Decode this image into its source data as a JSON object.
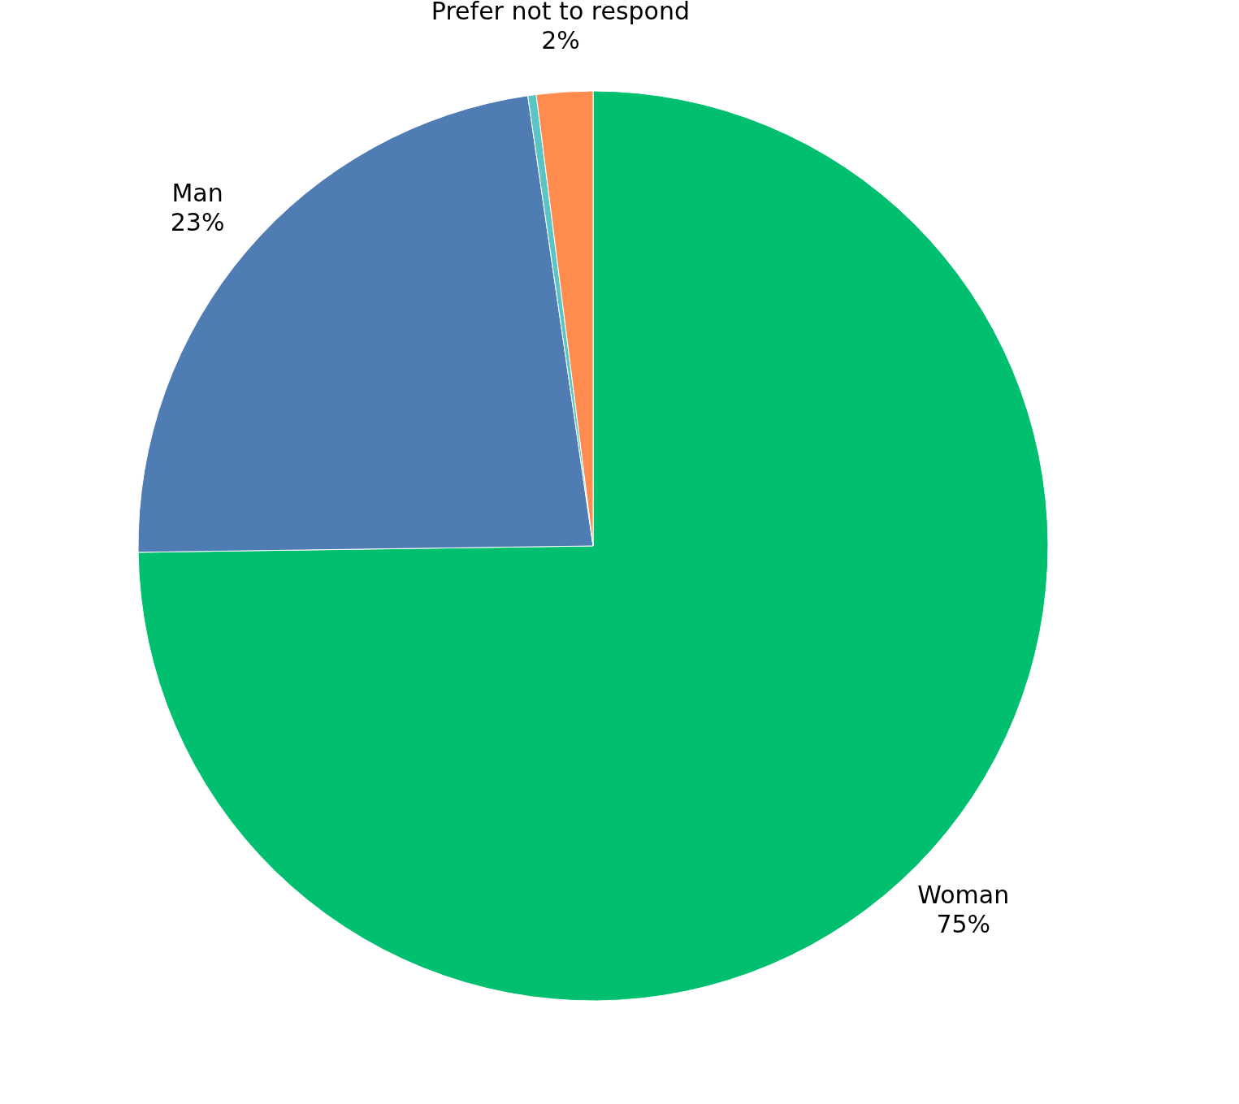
{
  "chart_data": {
    "type": "pie",
    "categories": [
      "Woman",
      "Man",
      null,
      "Prefer not to respond"
    ],
    "values": [
      75,
      23,
      0.3,
      2
    ],
    "colors": [
      "#00bf6f",
      "#507cb4",
      "#5bc4c4",
      "#ff8c4f"
    ],
    "value_labels": [
      "75%",
      "23%",
      null,
      "2%"
    ],
    "legend": false
  }
}
